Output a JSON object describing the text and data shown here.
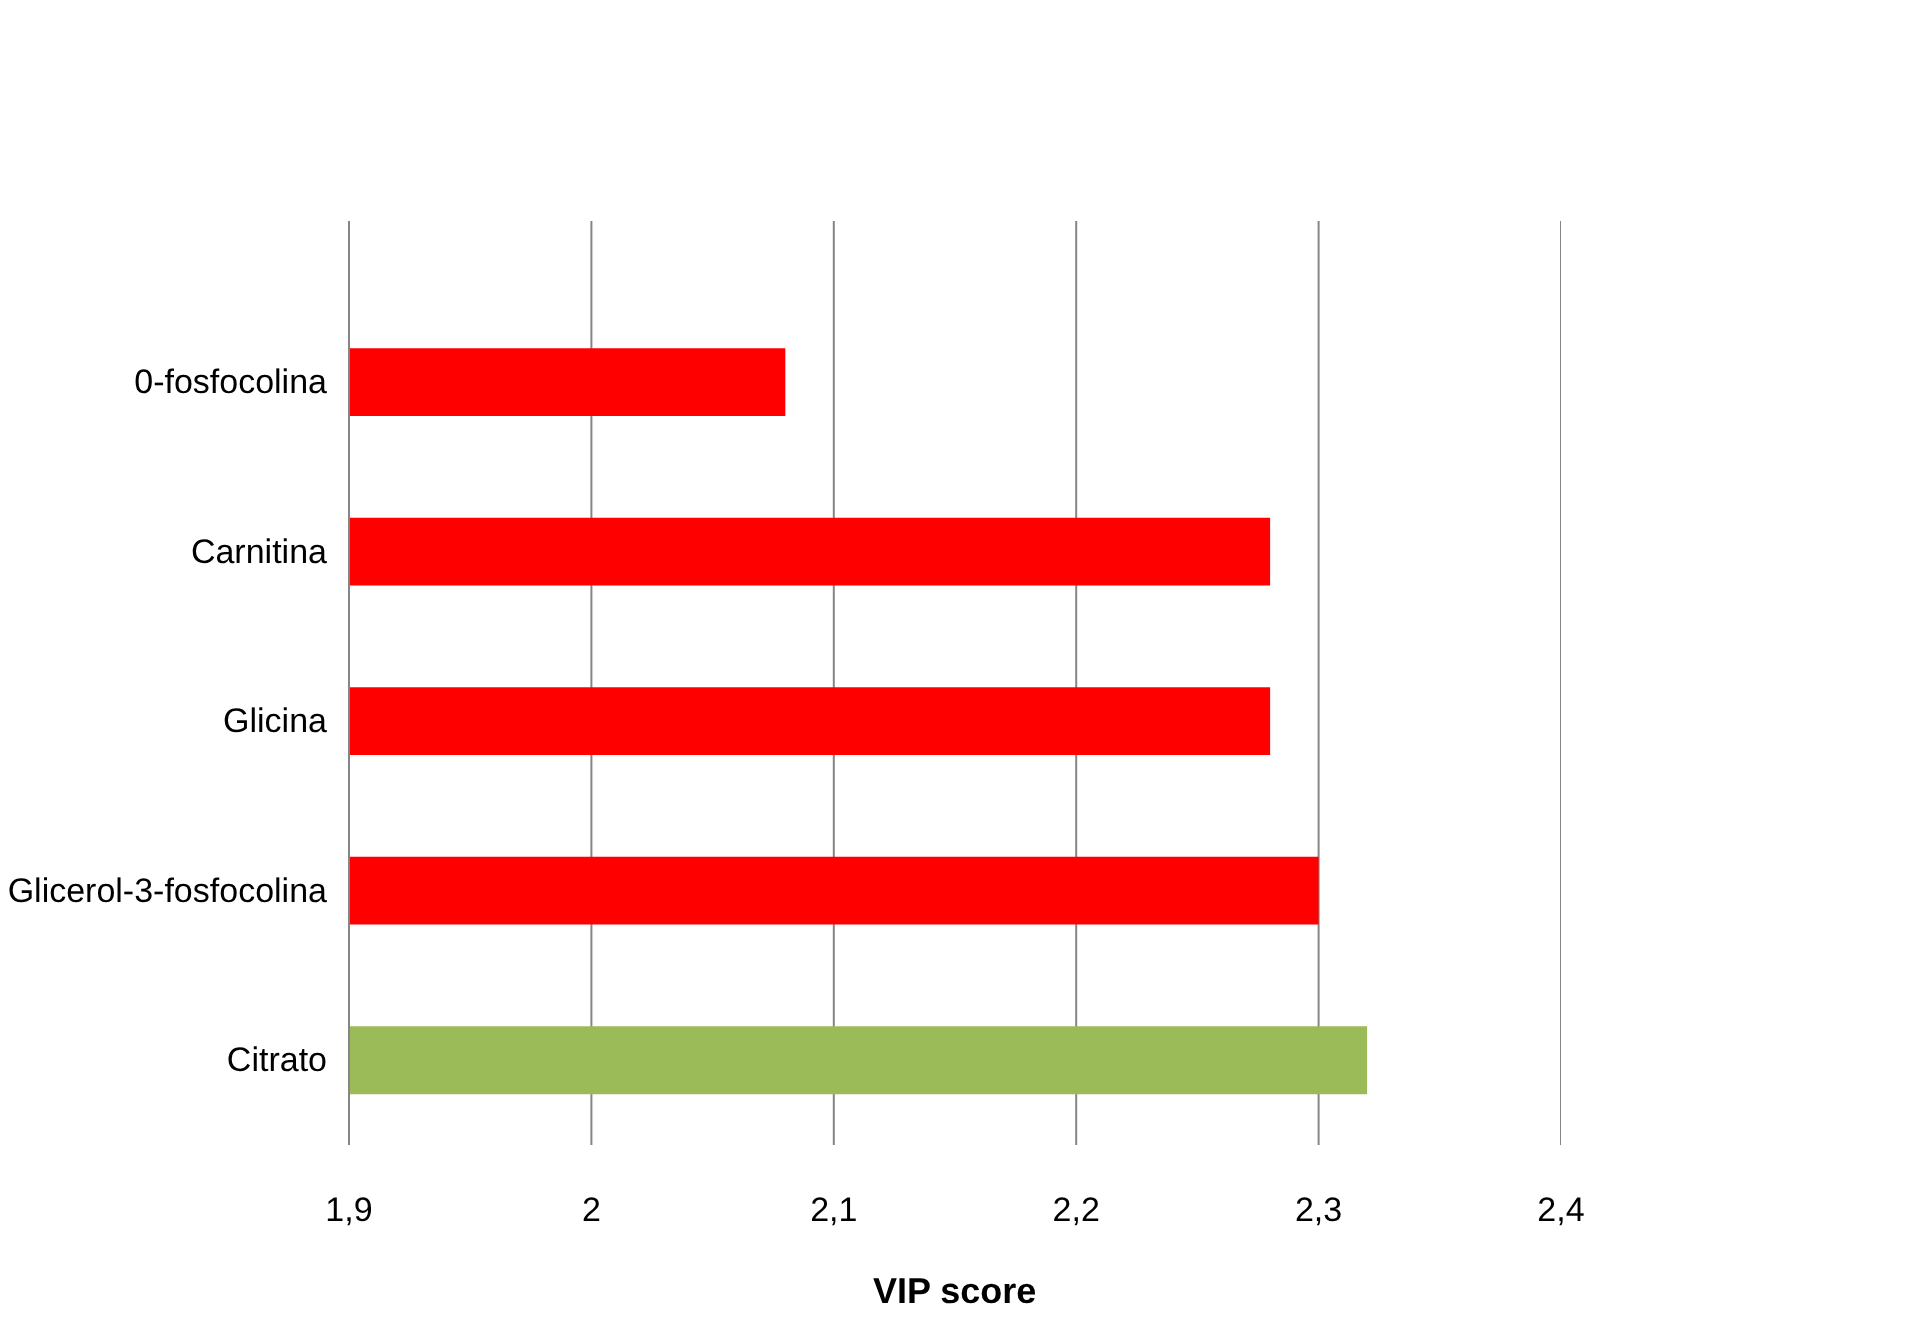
{
  "chart_data": {
    "type": "bar",
    "orientation": "horizontal",
    "xlabel": "VIP score",
    "categories": [
      "0-fosfocolina",
      "Carnitina",
      "Glicina",
      "Glicerol-3-fosfocolina",
      "Citrato"
    ],
    "values": [
      2.08,
      2.28,
      2.28,
      2.3,
      2.32
    ],
    "colors": [
      "#ff0000",
      "#ff0000",
      "#ff0000",
      "#ff0000",
      "#9bbb59"
    ],
    "xlim": [
      1.9,
      2.4
    ],
    "xticks": [
      {
        "value": 1.9,
        "label": "1,9"
      },
      2,
      {
        "value": 2.1,
        "label": "2,1"
      },
      {
        "value": 2.2,
        "label": "2,2"
      },
      {
        "value": 2.3,
        "label": "2,3"
      },
      {
        "value": 2.4,
        "label": "2,4"
      }
    ],
    "grid": "x"
  }
}
